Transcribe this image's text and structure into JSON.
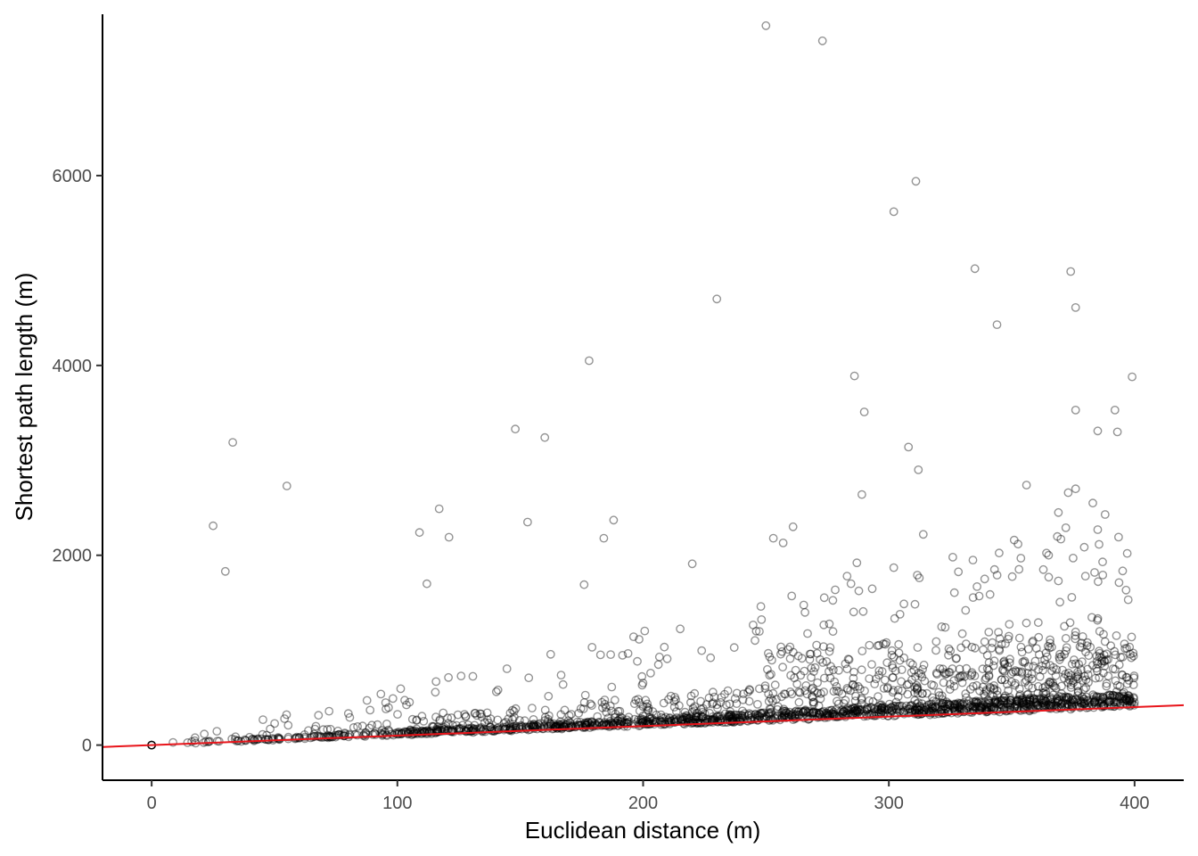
{
  "chart_data": {
    "type": "scatter",
    "title": "",
    "xlabel": "Euclidean distance (m)",
    "ylabel": "Shortest path length (m)",
    "xlim": [
      -20,
      420
    ],
    "ylim": [
      -370,
      7700
    ],
    "x_ticks": [
      0,
      100,
      200,
      300,
      400
    ],
    "y_ticks": [
      0,
      2000,
      4000,
      6000
    ],
    "grid": false,
    "legend": "none",
    "colors": {
      "points": "#000000",
      "reference_line": "#e8141a"
    },
    "reference_line": {
      "label": "",
      "slope": 1,
      "intercept": 0
    },
    "notable_points": [
      {
        "x": 250,
        "y": 7580
      },
      {
        "x": 273,
        "y": 7420
      },
      {
        "x": 311,
        "y": 5940
      },
      {
        "x": 302,
        "y": 5620
      },
      {
        "x": 335,
        "y": 5020
      },
      {
        "x": 374,
        "y": 4990
      },
      {
        "x": 230,
        "y": 4700
      },
      {
        "x": 376,
        "y": 4610
      },
      {
        "x": 344,
        "y": 4430
      },
      {
        "x": 178,
        "y": 4050
      },
      {
        "x": 286,
        "y": 3890
      },
      {
        "x": 399,
        "y": 3880
      },
      {
        "x": 376,
        "y": 3530
      },
      {
        "x": 392,
        "y": 3530
      },
      {
        "x": 290,
        "y": 3510
      },
      {
        "x": 148,
        "y": 3330
      },
      {
        "x": 385,
        "y": 3310
      },
      {
        "x": 393,
        "y": 3300
      },
      {
        "x": 160,
        "y": 3240
      },
      {
        "x": 33,
        "y": 3190
      },
      {
        "x": 308,
        "y": 3140
      },
      {
        "x": 312,
        "y": 2900
      },
      {
        "x": 356,
        "y": 2740
      },
      {
        "x": 55,
        "y": 2730
      },
      {
        "x": 376,
        "y": 2700
      },
      {
        "x": 373,
        "y": 2660
      },
      {
        "x": 289,
        "y": 2640
      },
      {
        "x": 383,
        "y": 2550
      },
      {
        "x": 117,
        "y": 2490
      },
      {
        "x": 369,
        "y": 2450
      },
      {
        "x": 388,
        "y": 2430
      },
      {
        "x": 188,
        "y": 2370
      },
      {
        "x": 153,
        "y": 2350
      },
      {
        "x": 25,
        "y": 2310
      },
      {
        "x": 261,
        "y": 2300
      },
      {
        "x": 372,
        "y": 2290
      },
      {
        "x": 385,
        "y": 2270
      },
      {
        "x": 109,
        "y": 2240
      },
      {
        "x": 314,
        "y": 2220
      },
      {
        "x": 121,
        "y": 2190
      },
      {
        "x": 184,
        "y": 2180
      },
      {
        "x": 253,
        "y": 2180
      },
      {
        "x": 370,
        "y": 2170
      },
      {
        "x": 351,
        "y": 2160
      },
      {
        "x": 257,
        "y": 2130
      },
      {
        "x": 397,
        "y": 2020
      },
      {
        "x": 365,
        "y": 2000
      },
      {
        "x": 326,
        "y": 1980
      },
      {
        "x": 375,
        "y": 1970
      },
      {
        "x": 387,
        "y": 1930
      },
      {
        "x": 287,
        "y": 1920
      },
      {
        "x": 220,
        "y": 1910
      },
      {
        "x": 302,
        "y": 1870
      },
      {
        "x": 343,
        "y": 1850
      },
      {
        "x": 30,
        "y": 1830
      },
      {
        "x": 283,
        "y": 1780
      },
      {
        "x": 380,
        "y": 1780
      },
      {
        "x": 339,
        "y": 1750
      },
      {
        "x": 369,
        "y": 1730
      },
      {
        "x": 112,
        "y": 1700
      },
      {
        "x": 176,
        "y": 1690
      }
    ],
    "bulk_points_summary": "about 2,500 further points clustered just above the red 1:1 line, mostly between y = x and y = 3x, with scattered outliers up to about 1500 m"
  }
}
